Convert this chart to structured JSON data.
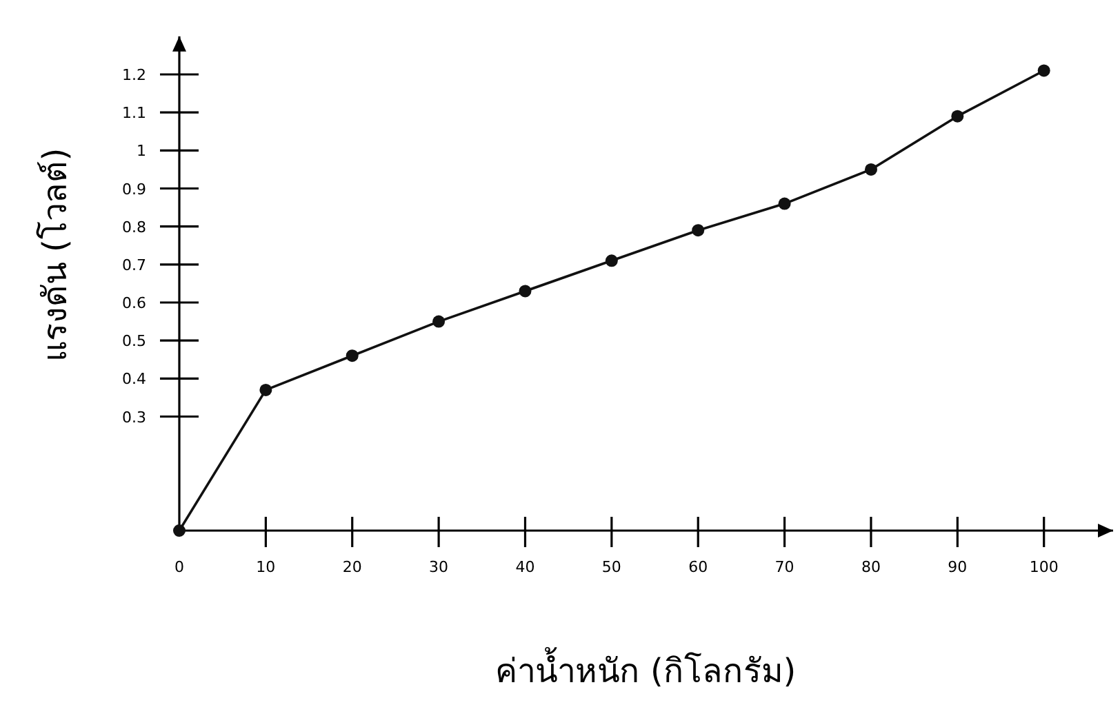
{
  "chart_data": {
    "type": "line",
    "xlabel": "ค่าน้ำหนัก (กิโลกรัม)",
    "ylabel": "แรงดัน (โวลต์)",
    "x": [
      0,
      10,
      20,
      30,
      40,
      50,
      60,
      70,
      80,
      90,
      100
    ],
    "series": [
      {
        "color": "#111111",
        "values": [
          0,
          0.37,
          0.46,
          0.55,
          0.63,
          0.71,
          0.79,
          0.86,
          0.95,
          1.09,
          1.21
        ]
      }
    ],
    "xlim": [
      0,
      108
    ],
    "ylim": [
      0,
      1.3
    ],
    "xticks": [
      {
        "value": 0,
        "label": "0"
      },
      10,
      20,
      30,
      40,
      50,
      60,
      70,
      80,
      90,
      100
    ],
    "yticks": [
      0.3,
      0.4,
      0.5,
      0.6,
      0.7,
      0.8,
      0.9,
      1.0,
      1.1,
      1.2
    ],
    "marker": "circle",
    "line_style": "solid",
    "grid": false
  }
}
